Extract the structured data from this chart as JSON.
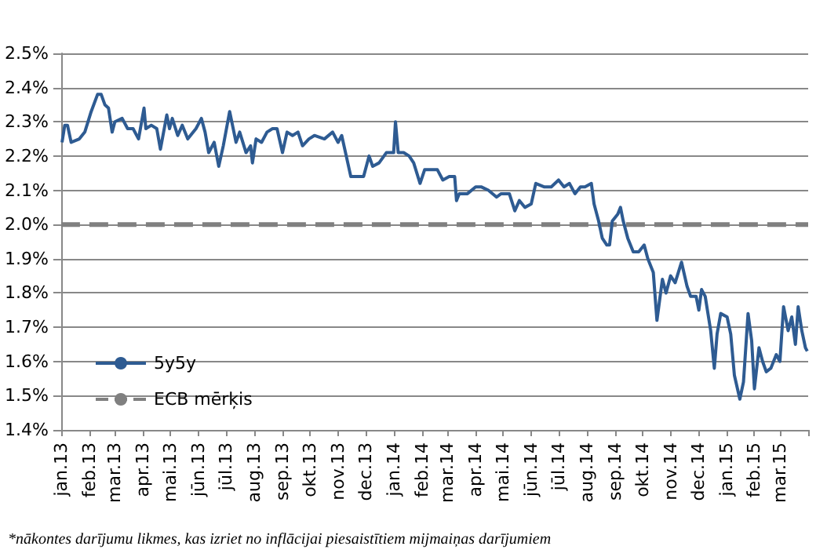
{
  "chart_data": {
    "type": "line",
    "x": [
      "2013-01-02",
      "2013-01-05",
      "2013-01-08",
      "2013-01-12",
      "2013-01-21",
      "2013-01-27",
      "2013-02-03",
      "2013-02-10",
      "2013-02-14",
      "2013-02-18",
      "2013-02-22",
      "2013-02-26",
      "2013-03-01",
      "2013-03-09",
      "2013-03-15",
      "2013-03-21",
      "2013-03-27",
      "2013-04-02",
      "2013-04-04",
      "2013-04-10",
      "2013-04-16",
      "2013-04-20",
      "2013-04-27",
      "2013-04-30",
      "2013-05-03",
      "2013-05-09",
      "2013-05-14",
      "2013-05-20",
      "2013-05-29",
      "2013-06-04",
      "2013-06-08",
      "2013-06-12",
      "2013-06-18",
      "2013-06-23",
      "2013-06-28",
      "2013-07-05",
      "2013-07-12",
      "2013-07-16",
      "2013-07-23",
      "2013-07-28",
      "2013-07-30",
      "2013-08-03",
      "2013-08-09",
      "2013-08-15",
      "2013-08-21",
      "2013-08-26",
      "2013-09-01",
      "2013-09-06",
      "2013-09-12",
      "2013-09-18",
      "2013-09-23",
      "2013-09-30",
      "2013-10-06",
      "2013-10-17",
      "2013-10-26",
      "2013-11-01",
      "2013-11-05",
      "2013-11-10",
      "2013-11-15",
      "2013-11-24",
      "2013-11-29",
      "2013-12-05",
      "2013-12-09",
      "2013-12-16",
      "2013-12-24",
      "2014-01-01",
      "2014-01-03",
      "2014-01-06",
      "2014-01-12",
      "2014-01-18",
      "2014-01-23",
      "2014-01-30",
      "2014-02-04",
      "2014-02-13",
      "2014-02-18",
      "2014-02-24",
      "2014-03-03",
      "2014-03-09",
      "2014-03-11",
      "2014-03-14",
      "2014-03-23",
      "2014-04-01",
      "2014-04-07",
      "2014-04-15",
      "2014-04-24",
      "2014-04-29",
      "2014-05-08",
      "2014-05-14",
      "2014-05-19",
      "2014-05-25",
      "2014-06-01",
      "2014-06-06",
      "2014-06-15",
      "2014-06-23",
      "2014-07-01",
      "2014-07-07",
      "2014-07-13",
      "2014-07-19",
      "2014-07-25",
      "2014-07-30",
      "2014-08-06",
      "2014-08-09",
      "2014-08-14",
      "2014-08-18",
      "2014-08-23",
      "2014-08-26",
      "2014-08-29",
      "2014-09-04",
      "2014-09-07",
      "2014-09-10",
      "2014-09-15",
      "2014-09-21",
      "2014-09-27",
      "2014-10-03",
      "2014-10-07",
      "2014-10-13",
      "2014-10-17",
      "2014-10-23",
      "2014-10-27",
      "2014-11-01",
      "2014-11-06",
      "2014-11-13",
      "2014-11-19",
      "2014-11-23",
      "2014-11-29",
      "2014-12-02",
      "2014-12-05",
      "2014-12-09",
      "2014-12-15",
      "2014-12-19",
      "2014-12-22",
      "2014-12-26",
      "2015-01-02",
      "2015-01-06",
      "2015-01-10",
      "2015-01-16",
      "2015-01-20",
      "2015-01-25",
      "2015-01-29",
      "2015-02-01",
      "2015-02-06",
      "2015-02-10",
      "2015-02-14",
      "2015-02-19",
      "2015-02-25",
      "2015-03-01",
      "2015-03-05",
      "2015-03-10",
      "2015-03-14",
      "2015-03-18",
      "2015-03-21",
      "2015-03-25",
      "2015-03-29",
      "2015-03-31"
    ],
    "series": [
      {
        "name": "5y5y",
        "color": "#2e5b92",
        "values": [
          2.24,
          2.29,
          2.29,
          2.24,
          2.25,
          2.27,
          2.33,
          2.38,
          2.38,
          2.35,
          2.34,
          2.27,
          2.3,
          2.31,
          2.28,
          2.28,
          2.25,
          2.34,
          2.28,
          2.29,
          2.28,
          2.22,
          2.32,
          2.28,
          2.31,
          2.26,
          2.29,
          2.25,
          2.28,
          2.31,
          2.27,
          2.21,
          2.24,
          2.17,
          2.23,
          2.33,
          2.24,
          2.27,
          2.21,
          2.23,
          2.18,
          2.25,
          2.24,
          2.27,
          2.28,
          2.28,
          2.21,
          2.27,
          2.26,
          2.27,
          2.23,
          2.25,
          2.26,
          2.25,
          2.27,
          2.24,
          2.26,
          2.2,
          2.14,
          2.14,
          2.14,
          2.2,
          2.17,
          2.18,
          2.21,
          2.21,
          2.3,
          2.21,
          2.21,
          2.2,
          2.18,
          2.12,
          2.16,
          2.16,
          2.16,
          2.13,
          2.14,
          2.14,
          2.07,
          2.09,
          2.09,
          2.11,
          2.11,
          2.1,
          2.08,
          2.09,
          2.09,
          2.04,
          2.07,
          2.05,
          2.06,
          2.12,
          2.11,
          2.11,
          2.13,
          2.11,
          2.12,
          2.09,
          2.11,
          2.11,
          2.12,
          2.06,
          2.01,
          1.96,
          1.94,
          1.94,
          2.01,
          2.03,
          2.05,
          2.01,
          1.96,
          1.92,
          1.92,
          1.94,
          1.9,
          1.86,
          1.72,
          1.84,
          1.8,
          1.85,
          1.83,
          1.89,
          1.82,
          1.79,
          1.79,
          1.75,
          1.81,
          1.79,
          1.69,
          1.58,
          1.68,
          1.74,
          1.73,
          1.68,
          1.56,
          1.49,
          1.54,
          1.74,
          1.66,
          1.52,
          1.64,
          1.6,
          1.57,
          1.58,
          1.62,
          1.6,
          1.76,
          1.69,
          1.73,
          1.65,
          1.76,
          1.69,
          1.64,
          1.63
        ]
      }
    ],
    "ref_lines": [
      {
        "axis": "y",
        "value": 2.0,
        "label": "ECB mērķis",
        "color": "#808080",
        "line_style": "dashed"
      }
    ],
    "xlim": [
      "2013-01-01",
      "2015-04-01"
    ],
    "xticks": [
      {
        "value": "2013-01",
        "label": "jan.13"
      },
      {
        "value": "2013-02",
        "label": "feb.13"
      },
      {
        "value": "2013-03",
        "label": "mar.13"
      },
      {
        "value": "2013-04",
        "label": "apr.13"
      },
      {
        "value": "2013-05",
        "label": "mai.13"
      },
      {
        "value": "2013-06",
        "label": "jūn.13"
      },
      {
        "value": "2013-07",
        "label": "jūl.13"
      },
      {
        "value": "2013-08",
        "label": "aug.13"
      },
      {
        "value": "2013-09",
        "label": "sep.13"
      },
      {
        "value": "2013-10",
        "label": "okt.13"
      },
      {
        "value": "2013-11",
        "label": "nov.13"
      },
      {
        "value": "2013-12",
        "label": "dec.13"
      },
      {
        "value": "2014-01",
        "label": "jan.14"
      },
      {
        "value": "2014-02",
        "label": "feb.14"
      },
      {
        "value": "2014-03",
        "label": "mar.14"
      },
      {
        "value": "2014-04",
        "label": "apr.14"
      },
      {
        "value": "2014-05",
        "label": "mai.14"
      },
      {
        "value": "2014-06",
        "label": "jūn.14"
      },
      {
        "value": "2014-07",
        "label": "jūl.14"
      },
      {
        "value": "2014-08",
        "label": "aug.14"
      },
      {
        "value": "2014-09",
        "label": "sep.14"
      },
      {
        "value": "2014-10",
        "label": "okt.14"
      },
      {
        "value": "2014-11",
        "label": "nov.14"
      },
      {
        "value": "2014-12",
        "label": "dec.14"
      },
      {
        "value": "2015-01",
        "label": "jan.15"
      },
      {
        "value": "2015-02",
        "label": "feb.15"
      },
      {
        "value": "2015-03",
        "label": "mar.15"
      },
      {
        "value": "2015-04",
        "label": null
      }
    ],
    "ylim": [
      1.4,
      2.5
    ],
    "yticks": [
      {
        "value": 1.4,
        "label": "1.4%"
      },
      {
        "value": 1.5,
        "label": "1.5%"
      },
      {
        "value": 1.6,
        "label": "1.6%"
      },
      {
        "value": 1.7,
        "label": "1.7%"
      },
      {
        "value": 1.8,
        "label": "1.8%"
      },
      {
        "value": 1.9,
        "label": "1.9%"
      },
      {
        "value": 2.0,
        "label": "2.0%"
      },
      {
        "value": 2.1,
        "label": "2.1%"
      },
      {
        "value": 2.2,
        "label": "2.2%"
      },
      {
        "value": 2.3,
        "label": "2.3%"
      },
      {
        "value": 2.4,
        "label": "2.4%"
      },
      {
        "value": 2.5,
        "label": "2.5%"
      }
    ],
    "grid": "y",
    "legend": "bottom left",
    "marker": "none",
    "line_style": "solid",
    "annotations": [
      "*nākontes darījumu likmes, kas izriet no inflācijai piesaistītiem mijmaiņas darījumiem"
    ]
  }
}
